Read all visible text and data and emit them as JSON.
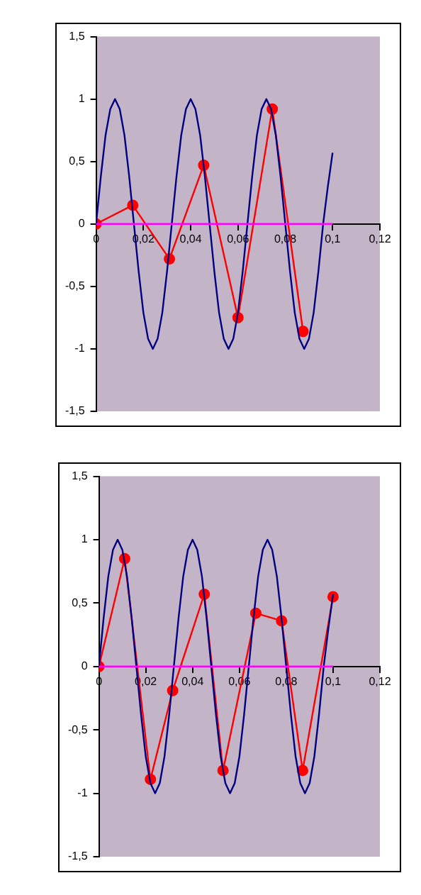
{
  "chart_data": [
    {
      "type": "line",
      "xlim": [
        0,
        0.12
      ],
      "ylim": [
        -1.5,
        1.5
      ],
      "xticks": [
        0,
        {
          "value": 0.02,
          "label": "0,02"
        },
        {
          "value": 0.04,
          "label": "0,04"
        },
        {
          "value": 0.06,
          "label": "0,06"
        },
        {
          "value": 0.08,
          "label": "0,08"
        },
        {
          "value": 0.1,
          "label": "0,1"
        },
        {
          "value": 0.12,
          "label": "0,12"
        }
      ],
      "yticks": [
        {
          "value": -1.5,
          "label": "-1,5"
        },
        -1,
        {
          "value": -0.5,
          "label": "-0,5"
        },
        0,
        {
          "value": 0.5,
          "label": "0,5"
        },
        1,
        {
          "value": 1.5,
          "label": "1,5"
        }
      ],
      "grid": false,
      "legend": false,
      "series": [
        {
          "color": "#ff00ff",
          "marker": "none",
          "x": [
            0,
            0.1
          ],
          "values": [
            0,
            0
          ]
        },
        {
          "color": "#000080",
          "marker": "none",
          "x": [
            0,
            0.002,
            0.004,
            0.006,
            0.008,
            0.01,
            0.012,
            0.014,
            0.016,
            0.018,
            0.02,
            0.022,
            0.024,
            0.026,
            0.028,
            0.03,
            0.032,
            0.034,
            0.036,
            0.038,
            0.04,
            0.042,
            0.044,
            0.046,
            0.048,
            0.05,
            0.052,
            0.054,
            0.056,
            0.058,
            0.06,
            0.062,
            0.064,
            0.066,
            0.068,
            0.07,
            0.072,
            0.074,
            0.076,
            0.078,
            0.08,
            0.082,
            0.084,
            0.086,
            0.088,
            0.09,
            0.092,
            0.094,
            0.096,
            0.098,
            0.1
          ],
          "values": [
            0,
            0.38,
            0.71,
            0.92,
            1,
            0.92,
            0.71,
            0.38,
            0,
            -0.38,
            -0.71,
            -0.92,
            -1,
            -0.92,
            -0.71,
            -0.38,
            0,
            0.38,
            0.71,
            0.92,
            1,
            0.92,
            0.71,
            0.38,
            0,
            -0.38,
            -0.71,
            -0.92,
            -1,
            -0.92,
            -0.71,
            -0.38,
            0,
            0.38,
            0.71,
            0.92,
            1,
            0.92,
            0.71,
            0.38,
            0,
            -0.38,
            -0.71,
            -0.92,
            -1,
            -0.92,
            -0.71,
            -0.38,
            0,
            0.3,
            0.57
          ]
        },
        {
          "color": "#ff0000",
          "marker": "circle",
          "x": [
            0,
            0.0155,
            0.031,
            0.0455,
            0.06,
            0.0745,
            0.0875
          ],
          "values": [
            0,
            0.15,
            -0.28,
            0.47,
            -0.75,
            0.92,
            -0.86
          ]
        }
      ]
    },
    {
      "type": "line",
      "xlim": [
        0,
        0.12
      ],
      "ylim": [
        -1.5,
        1.5
      ],
      "xticks": [
        0,
        {
          "value": 0.02,
          "label": "0,02"
        },
        {
          "value": 0.04,
          "label": "0,04"
        },
        {
          "value": 0.06,
          "label": "0,06"
        },
        {
          "value": 0.08,
          "label": "0,08"
        },
        {
          "value": 0.1,
          "label": "0,1"
        },
        {
          "value": 0.12,
          "label": "0,12"
        }
      ],
      "yticks": [
        {
          "value": -1.5,
          "label": "-1,5"
        },
        -1,
        {
          "value": -0.5,
          "label": "-0,5"
        },
        0,
        {
          "value": 0.5,
          "label": "0,5"
        },
        1,
        {
          "value": 1.5,
          "label": "1,5"
        }
      ],
      "grid": false,
      "legend": false,
      "series": [
        {
          "color": "#ff00ff",
          "marker": "none",
          "x": [
            0,
            0.1
          ],
          "values": [
            0,
            0
          ]
        },
        {
          "color": "#000080",
          "marker": "none",
          "x": [
            0,
            0.002,
            0.004,
            0.006,
            0.008,
            0.01,
            0.012,
            0.014,
            0.016,
            0.018,
            0.02,
            0.022,
            0.024,
            0.026,
            0.028,
            0.03,
            0.032,
            0.034,
            0.036,
            0.038,
            0.04,
            0.042,
            0.044,
            0.046,
            0.048,
            0.05,
            0.052,
            0.054,
            0.056,
            0.058,
            0.06,
            0.062,
            0.064,
            0.066,
            0.068,
            0.07,
            0.072,
            0.074,
            0.076,
            0.078,
            0.08,
            0.082,
            0.084,
            0.086,
            0.088,
            0.09,
            0.092,
            0.094,
            0.096,
            0.098,
            0.1
          ],
          "values": [
            0,
            0.38,
            0.71,
            0.92,
            1,
            0.92,
            0.71,
            0.38,
            0,
            -0.38,
            -0.71,
            -0.92,
            -1,
            -0.92,
            -0.71,
            -0.38,
            0,
            0.38,
            0.71,
            0.92,
            1,
            0.92,
            0.71,
            0.38,
            0,
            -0.38,
            -0.71,
            -0.92,
            -1,
            -0.92,
            -0.71,
            -0.38,
            0,
            0.38,
            0.71,
            0.92,
            1,
            0.92,
            0.71,
            0.38,
            0,
            -0.38,
            -0.71,
            -0.92,
            -1,
            -0.92,
            -0.71,
            -0.38,
            0,
            0.3,
            0.57
          ]
        },
        {
          "color": "#ff0000",
          "marker": "circle",
          "x": [
            0,
            0.011,
            0.022,
            0.0315,
            0.045,
            0.053,
            0.067,
            0.078,
            0.087,
            0.1
          ],
          "values": [
            0,
            0.85,
            -0.89,
            -0.19,
            0.57,
            -0.82,
            0.42,
            0.36,
            -0.82,
            0.55
          ]
        }
      ]
    }
  ]
}
